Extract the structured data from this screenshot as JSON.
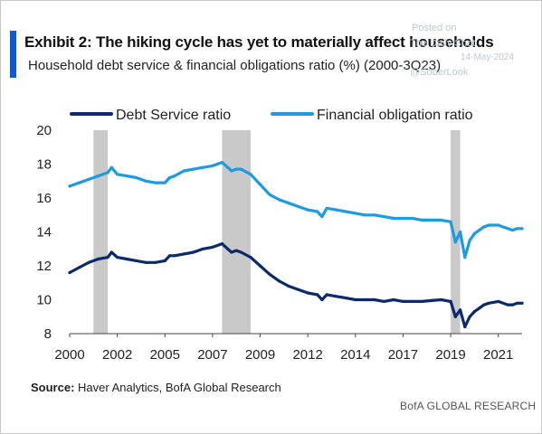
{
  "header": {
    "title": "Exhibit 2: The hiking cycle has yet to materially affect households",
    "subtitle": "Household debt service & financial obligations ratio (%) (2000-3Q23)"
  },
  "watermark": {
    "line1": "Posted on",
    "line2": "The Daily Shot",
    "line3": "14-May-2024",
    "line4": "@SoberLook"
  },
  "footer": {
    "source_label": "Source:",
    "source_text": " Haver Analytics, BofA Global Research",
    "branding": "BofA GLOBAL RESEARCH"
  },
  "colors": {
    "accent": "#0a5bd6",
    "debt_service": "#0b2a6b",
    "financial_obligation": "#1e9ae0",
    "recession_band": "#c9c9c9"
  },
  "chart_data": {
    "type": "line",
    "title": "",
    "xlabel": "",
    "ylabel": "",
    "xlim": [
      2000.0,
      2023.75
    ],
    "ylim": [
      8,
      20
    ],
    "grid": false,
    "legend_position": "top",
    "x_ticks": [
      {
        "value": 2000.0,
        "label": "2000"
      },
      {
        "value": 2002.5,
        "label": "2002"
      },
      {
        "value": 2005.0,
        "label": "2005"
      },
      {
        "value": 2007.5,
        "label": "2007"
      },
      {
        "value": 2010.0,
        "label": "2009"
      },
      {
        "value": 2012.5,
        "label": "2012"
      },
      {
        "value": 2015.0,
        "label": "2014"
      },
      {
        "value": 2017.5,
        "label": "2017"
      },
      {
        "value": 2020.0,
        "label": "2019"
      },
      {
        "value": 2022.5,
        "label": "2021"
      }
    ],
    "y_ticks": [
      8,
      10,
      12,
      14,
      16,
      18,
      20
    ],
    "shaded_periods": [
      [
        2001.25,
        2002.0
      ],
      [
        2008.0,
        2009.5
      ],
      [
        2020.0,
        2020.5
      ]
    ],
    "series": [
      {
        "name": "Debt Service ratio",
        "color": "#0b2a6b",
        "x": [
          2000.0,
          2000.5,
          2001.0,
          2001.5,
          2002.0,
          2002.2,
          2002.5,
          2003.0,
          2003.5,
          2004.0,
          2004.5,
          2005.0,
          2005.25,
          2005.5,
          2006.0,
          2006.5,
          2007.0,
          2007.5,
          2008.0,
          2008.3,
          2008.5,
          2008.75,
          2009.0,
          2009.5,
          2010.0,
          2010.5,
          2011.0,
          2011.5,
          2012.0,
          2012.5,
          2013.0,
          2013.25,
          2013.5,
          2014.0,
          2014.5,
          2015.0,
          2015.5,
          2016.0,
          2016.5,
          2017.0,
          2017.5,
          2018.0,
          2018.5,
          2019.0,
          2019.5,
          2020.0,
          2020.25,
          2020.5,
          2020.75,
          2021.0,
          2021.25,
          2021.5,
          2021.75,
          2022.0,
          2022.5,
          2023.0,
          2023.25,
          2023.5,
          2023.75
        ],
        "values": [
          11.6,
          11.9,
          12.2,
          12.4,
          12.5,
          12.8,
          12.5,
          12.4,
          12.3,
          12.2,
          12.2,
          12.3,
          12.6,
          12.6,
          12.7,
          12.8,
          13.0,
          13.1,
          13.3,
          13.0,
          12.8,
          12.9,
          12.8,
          12.5,
          12.0,
          11.5,
          11.1,
          10.8,
          10.6,
          10.4,
          10.3,
          10.0,
          10.3,
          10.2,
          10.1,
          10.0,
          10.0,
          10.0,
          9.9,
          10.0,
          9.9,
          9.9,
          9.9,
          9.95,
          10.0,
          9.9,
          9.0,
          9.4,
          8.4,
          9.0,
          9.3,
          9.5,
          9.7,
          9.8,
          9.9,
          9.7,
          9.7,
          9.8,
          9.8
        ]
      },
      {
        "name": "Financial obligation ratio",
        "color": "#1e9ae0",
        "x": [
          2000.0,
          2000.5,
          2001.0,
          2001.5,
          2002.0,
          2002.2,
          2002.5,
          2003.0,
          2003.5,
          2004.0,
          2004.5,
          2005.0,
          2005.25,
          2005.5,
          2006.0,
          2006.5,
          2007.0,
          2007.5,
          2008.0,
          2008.3,
          2008.5,
          2008.75,
          2009.0,
          2009.5,
          2010.0,
          2010.5,
          2011.0,
          2011.5,
          2012.0,
          2012.5,
          2013.0,
          2013.25,
          2013.5,
          2014.0,
          2014.5,
          2015.0,
          2015.5,
          2016.0,
          2016.5,
          2017.0,
          2017.5,
          2018.0,
          2018.5,
          2019.0,
          2019.5,
          2020.0,
          2020.25,
          2020.5,
          2020.75,
          2021.0,
          2021.25,
          2021.5,
          2021.75,
          2022.0,
          2022.5,
          2023.0,
          2023.25,
          2023.5,
          2023.75
        ],
        "values": [
          16.7,
          16.9,
          17.1,
          17.3,
          17.5,
          17.8,
          17.4,
          17.3,
          17.2,
          17.0,
          16.9,
          16.9,
          17.2,
          17.3,
          17.6,
          17.7,
          17.8,
          17.9,
          18.1,
          17.8,
          17.6,
          17.7,
          17.7,
          17.4,
          16.8,
          16.2,
          15.9,
          15.7,
          15.5,
          15.3,
          15.2,
          14.9,
          15.4,
          15.3,
          15.2,
          15.1,
          15.0,
          15.0,
          14.9,
          14.8,
          14.8,
          14.8,
          14.7,
          14.7,
          14.7,
          14.6,
          13.4,
          14.0,
          12.5,
          13.5,
          13.9,
          14.1,
          14.3,
          14.4,
          14.4,
          14.2,
          14.1,
          14.2,
          14.2
        ]
      }
    ]
  }
}
